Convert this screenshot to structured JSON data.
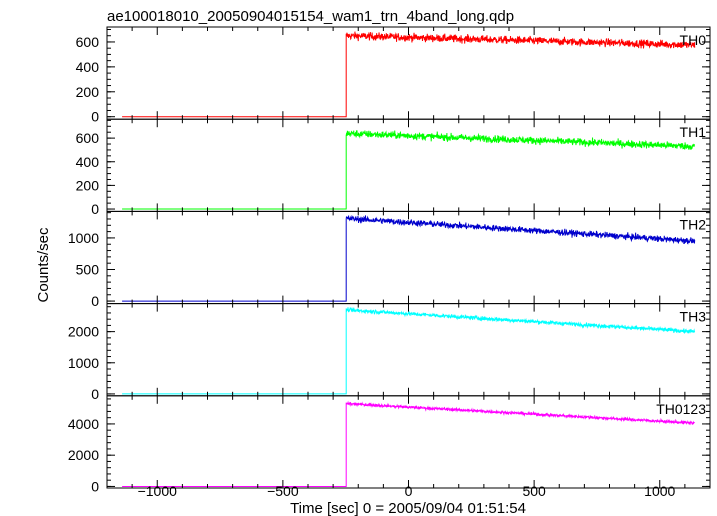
{
  "chart_data": {
    "type": "line",
    "title": "ae100018010_20050904015154_wam1_trn_4band_long.qdp",
    "xlabel": "Time [sec] 0 = 2005/09/04 01:51:54",
    "ylabel": "Counts/sec",
    "xlim": [
      -1200,
      1200
    ],
    "xticks": [
      -1000,
      -500,
      0,
      500,
      1000
    ],
    "xtick_labels": [
      "−1000",
      "−500",
      "0",
      "500",
      "1000"
    ],
    "data_x_range": [
      -1140,
      1140
    ],
    "trigger_time": -248,
    "grid": false,
    "legend": "none",
    "panels": [
      {
        "name": "TH0",
        "color": "#ff0000",
        "ylim": [
          -20,
          720
        ],
        "yticks": [
          0,
          200,
          400,
          600
        ],
        "ytick_labels": [
          "0",
          "200",
          "400",
          "600"
        ],
        "pre_level": 0,
        "post_start": 650,
        "post_end": 575,
        "noise": 22
      },
      {
        "name": "TH1",
        "color": "#00ff00",
        "ylim": [
          -20,
          760
        ],
        "yticks": [
          0,
          200,
          400,
          600
        ],
        "ytick_labels": [
          "0",
          "200",
          "400",
          "600"
        ],
        "pre_level": 0,
        "post_start": 640,
        "post_end": 530,
        "noise": 22
      },
      {
        "name": "TH2",
        "color": "#0000cc",
        "ylim": [
          -40,
          1420
        ],
        "yticks": [
          0,
          500,
          1000
        ],
        "ytick_labels": [
          "0",
          "500",
          "1000"
        ],
        "pre_level": 0,
        "post_start": 1310,
        "post_end": 950,
        "noise": 35
      },
      {
        "name": "TH3",
        "color": "#00ffff",
        "ylim": [
          -60,
          2900
        ],
        "yticks": [
          0,
          1000,
          2000
        ],
        "ytick_labels": [
          "0",
          "1000",
          "2000"
        ],
        "pre_level": 0,
        "post_start": 2700,
        "post_end": 2000,
        "noise": 45
      },
      {
        "name": "TH0123",
        "color": "#ff00ff",
        "ylim": [
          -100,
          5800
        ],
        "yticks": [
          0,
          2000,
          4000
        ],
        "ytick_labels": [
          "0",
          "2000",
          "4000"
        ],
        "pre_level": 0,
        "post_start": 5300,
        "post_end": 4050,
        "noise": 65
      }
    ]
  }
}
